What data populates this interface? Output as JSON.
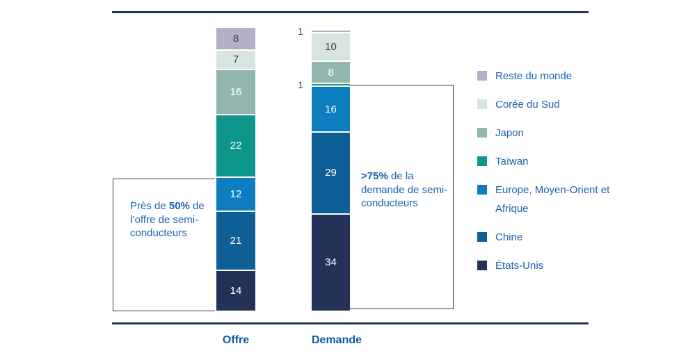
{
  "chart_data": {
    "type": "bar",
    "stacked": true,
    "orientation": "vertical",
    "categories": [
      "Offre",
      "Demande"
    ],
    "series": [
      {
        "name": "Reste du monde",
        "color": "#b4afc7",
        "label_color": "#3e3e50",
        "values": [
          8,
          1
        ]
      },
      {
        "name": "Corée du Sud",
        "color": "#d7e4e0",
        "label_color": "#3e3e50",
        "values": [
          7,
          10
        ]
      },
      {
        "name": "Japon",
        "color": "#93b6b0",
        "label_color": "#ffffff",
        "values": [
          16,
          8
        ]
      },
      {
        "name": "Taïwan",
        "color": "#0d968c",
        "label_color": "#ffffff",
        "values": [
          22,
          1
        ]
      },
      {
        "name": "Europe, Moyen-Orient et Afrique",
        "color": "#0c7ec0",
        "label_color": "#ffffff",
        "values": [
          12,
          16
        ]
      },
      {
        "name": "Chine",
        "color": "#0e5f95",
        "label_color": "#ffffff",
        "values": [
          21,
          29
        ]
      },
      {
        "name": "États-Unis",
        "color": "#243259",
        "label_color": "#ffffff",
        "values": [
          14,
          34
        ]
      }
    ],
    "totals": {
      "Offre": 100,
      "Demande": 99
    },
    "legend_position": "right",
    "grid": false,
    "xlabel": "",
    "ylabel": ""
  },
  "axis": {
    "offre_label": "Offre",
    "demande_label": "Demande"
  },
  "annotations": {
    "left": {
      "prefix": "Près de ",
      "bold": "50%",
      "suffix": " de l’offre de semi-conducteurs"
    },
    "right": {
      "prefix": "",
      "bold": ">75%",
      "suffix": " de la demande de semi-conducteurs"
    }
  },
  "colors": {
    "rule": "#253459",
    "annotation_border": "#253459",
    "annotation_text": "#1961ac",
    "legend_text": "#1961ac",
    "axis_label_text": "#0b57a6",
    "outside_label_text": "#3e3e50"
  }
}
